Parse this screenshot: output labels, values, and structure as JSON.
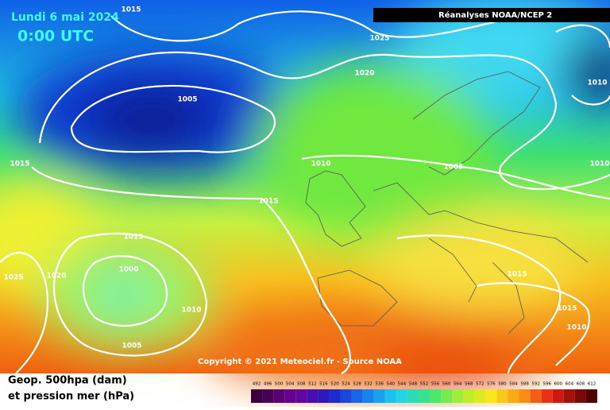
{
  "header": {
    "date": "Lundi 6 mai 2024",
    "time": "0:00 UTC",
    "source_banner": "Réanalyses NOAA/NCEP 2"
  },
  "isobar_labels": [
    "1015",
    "1025",
    "1020",
    "1005",
    "1010",
    "1015",
    "1010",
    "1005",
    "1010",
    "1015",
    "1015",
    "1025",
    "1020",
    "1000",
    "1015",
    "1010",
    "1015",
    "1010",
    "1005"
  ],
  "copyright": "Copyright © 2021 Meteociel.fr - Source NOAA",
  "legend": [
    "Geop. 500hpa (dam)",
    "et pression mer (hPa)"
  ],
  "colorbar_labels": [
    "492",
    "496",
    "500",
    "504",
    "508",
    "512",
    "516",
    "520",
    "524",
    "528",
    "532",
    "536",
    "540",
    "544",
    "548",
    "552",
    "556",
    "560",
    "564",
    "568",
    "572",
    "576",
    "580",
    "584",
    "588",
    "592",
    "596",
    "600",
    "604",
    "608",
    "612"
  ]
}
